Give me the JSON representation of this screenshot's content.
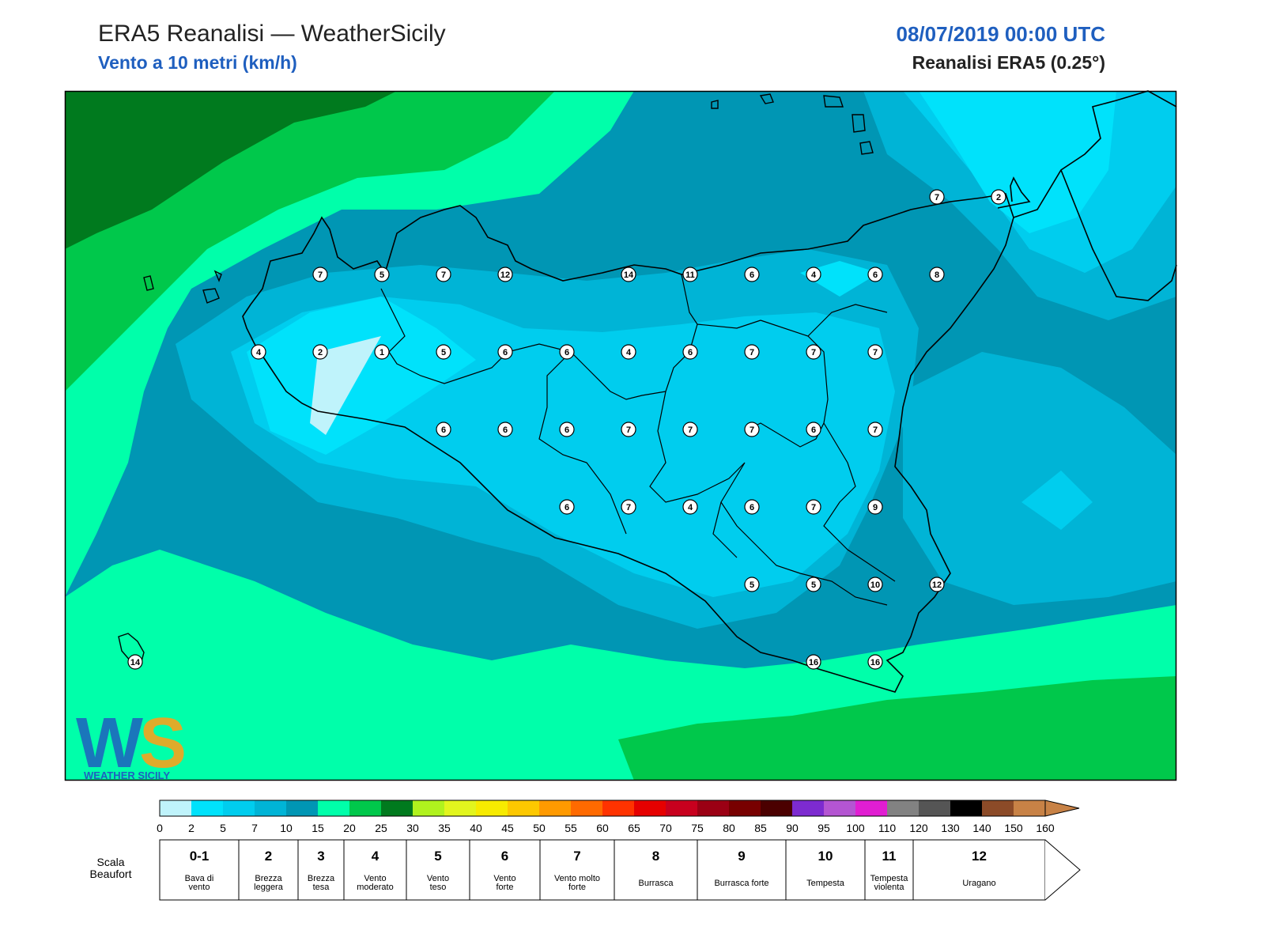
{
  "header": {
    "title": "ERA5 Reanalisi — WeatherSicily",
    "subtitle": "Vento a 10 metri (km/h)",
    "datetime": "08/07/2019 00:00 UTC",
    "source": "Reanalisi ERA5 (0.25°)"
  },
  "map": {
    "region": "Sicilia",
    "background_color": "#0096b4",
    "stations": [
      {
        "value": "7",
        "lon": 12.5,
        "lat": 38.25
      },
      {
        "value": "5",
        "lon": 13.0,
        "lat": 38.25
      },
      {
        "value": "7",
        "lon": 13.5,
        "lat": 38.25
      },
      {
        "value": "12",
        "lon": 14.0,
        "lat": 38.25
      },
      {
        "value": "14",
        "lon": 15.0,
        "lat": 38.25
      },
      {
        "value": "11",
        "lon": 15.5,
        "lat": 38.25
      },
      {
        "value": "6",
        "lon": 16.0,
        "lat": 38.25
      },
      {
        "value": "4",
        "lon": 16.5,
        "lat": 38.25
      },
      {
        "value": "6",
        "lon": 17.0,
        "lat": 38.25
      },
      {
        "value": "8",
        "lon": 17.5,
        "lat": 38.25
      },
      {
        "value": "7",
        "lon": 17.5,
        "lat": 38.75
      },
      {
        "value": "2",
        "lon": 18.0,
        "lat": 38.75
      },
      {
        "value": "4",
        "lon": 12.0,
        "lat": 37.75
      },
      {
        "value": "2",
        "lon": 12.5,
        "lat": 37.75
      },
      {
        "value": "1",
        "lon": 13.0,
        "lat": 37.75
      },
      {
        "value": "5",
        "lon": 13.5,
        "lat": 37.75
      },
      {
        "value": "6",
        "lon": 14.0,
        "lat": 37.75
      },
      {
        "value": "6",
        "lon": 14.5,
        "lat": 37.75
      },
      {
        "value": "4",
        "lon": 15.0,
        "lat": 37.75
      },
      {
        "value": "6",
        "lon": 15.5,
        "lat": 37.75
      },
      {
        "value": "7",
        "lon": 16.0,
        "lat": 37.75
      },
      {
        "value": "7",
        "lon": 16.5,
        "lat": 37.75
      },
      {
        "value": "7",
        "lon": 17.0,
        "lat": 37.75
      },
      {
        "value": "6",
        "lon": 13.5,
        "lat": 37.25
      },
      {
        "value": "6",
        "lon": 14.0,
        "lat": 37.25
      },
      {
        "value": "6",
        "lon": 14.5,
        "lat": 37.25
      },
      {
        "value": "7",
        "lon": 15.0,
        "lat": 37.25
      },
      {
        "value": "7",
        "lon": 15.5,
        "lat": 37.25
      },
      {
        "value": "7",
        "lon": 16.0,
        "lat": 37.25
      },
      {
        "value": "6",
        "lon": 16.5,
        "lat": 37.25
      },
      {
        "value": "7",
        "lon": 17.0,
        "lat": 37.25
      },
      {
        "value": "6",
        "lon": 14.5,
        "lat": 36.75
      },
      {
        "value": "7",
        "lon": 15.0,
        "lat": 36.75
      },
      {
        "value": "4",
        "lon": 15.5,
        "lat": 36.75
      },
      {
        "value": "6",
        "lon": 16.0,
        "lat": 36.75
      },
      {
        "value": "7",
        "lon": 16.5,
        "lat": 36.75
      },
      {
        "value": "9",
        "lon": 17.0,
        "lat": 36.75
      },
      {
        "value": "5",
        "lon": 16.0,
        "lat": 36.25
      },
      {
        "value": "5",
        "lon": 16.5,
        "lat": 36.25
      },
      {
        "value": "10",
        "lon": 17.0,
        "lat": 36.25
      },
      {
        "value": "12",
        "lon": 17.5,
        "lat": 36.25
      },
      {
        "value": "16",
        "lon": 16.5,
        "lat": 35.75
      },
      {
        "value": "16",
        "lon": 17.0,
        "lat": 35.75
      },
      {
        "value": "14",
        "lon": 11.0,
        "lat": 35.75
      }
    ],
    "logo_text": "WEATHER SICILY"
  },
  "colorbar": {
    "ticks": [
      "0",
      "2",
      "5",
      "7",
      "10",
      "15",
      "20",
      "25",
      "30",
      "35",
      "40",
      "45",
      "50",
      "55",
      "60",
      "65",
      "70",
      "75",
      "80",
      "85",
      "90",
      "95",
      "100",
      "110",
      "120",
      "130",
      "140",
      "150",
      "160"
    ],
    "colors": [
      "#bff3fb",
      "#00e2fb",
      "#00cdee",
      "#00b4d6",
      "#0096b4",
      "#00ffaa",
      "#00c84b",
      "#007a1e",
      "#b0f21e",
      "#e2f51e",
      "#f7eb00",
      "#fdc800",
      "#ff9a00",
      "#ff6a00",
      "#ff3300",
      "#e60000",
      "#c8001e",
      "#9b0014",
      "#780000",
      "#4b0000",
      "#7d2bd0",
      "#b455d2",
      "#e11ed2",
      "#828282",
      "#555555",
      "#000000",
      "#8c4b28",
      "#c88246"
    ]
  },
  "beaufort": {
    "label": "Scala Beaufort",
    "levels": [
      {
        "num": "0-1",
        "desc": "Bava di vento"
      },
      {
        "num": "2",
        "desc": "Brezza leggera"
      },
      {
        "num": "3",
        "desc": "Brezza tesa"
      },
      {
        "num": "4",
        "desc": "Vento moderato"
      },
      {
        "num": "5",
        "desc": "Vento teso"
      },
      {
        "num": "6",
        "desc": "Vento forte"
      },
      {
        "num": "7",
        "desc": "Vento molto forte"
      },
      {
        "num": "8",
        "desc": "Burrasca"
      },
      {
        "num": "9",
        "desc": "Burrasca forte"
      },
      {
        "num": "10",
        "desc": "Tempesta"
      },
      {
        "num": "11",
        "desc": "Tempesta violenta"
      },
      {
        "num": "12",
        "desc": "Uragano"
      }
    ]
  }
}
